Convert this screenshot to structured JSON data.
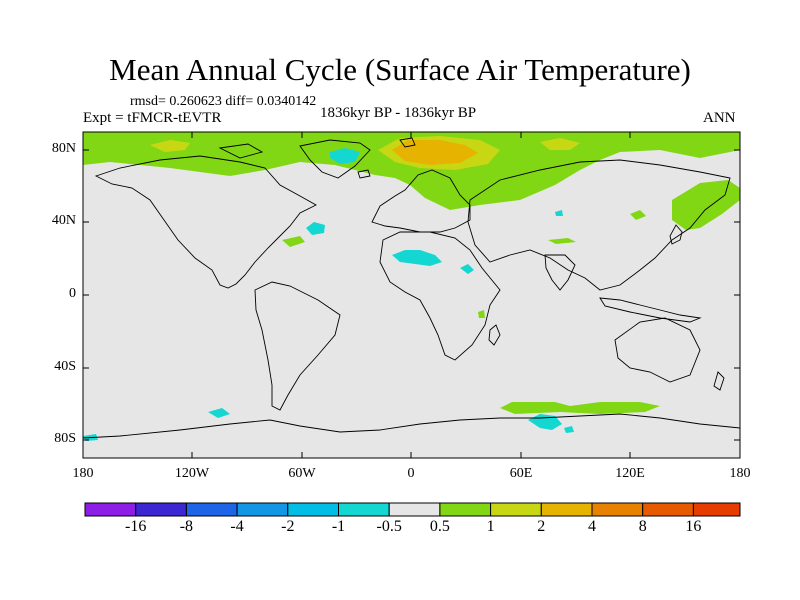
{
  "title": "Mean Annual Cycle (Surface Air Temperature)",
  "stats": "rmsd= 0.260623 diff= 0.0340142",
  "experiment": "Expt = tFMCR-tEVTR",
  "period": "1836kyr BP - 1836kyr BP",
  "season": "ANN",
  "y_axis": {
    "ticks": [
      "80N",
      "40N",
      "0",
      "40S",
      "80S"
    ]
  },
  "x_axis": {
    "ticks": [
      "180",
      "120W",
      "60W",
      "0",
      "60E",
      "120E",
      "180"
    ]
  },
  "colorbar": {
    "labels": [
      "-16",
      "-8",
      "-4",
      "-2",
      "-1",
      "-0.5",
      "0.5",
      "1",
      "2",
      "4",
      "8",
      "16"
    ],
    "colors": [
      "#8c1ee6",
      "#3c28d2",
      "#1e64e6",
      "#1496e6",
      "#00bee6",
      "#14d7d2",
      "#e6e6e6",
      "#82d714",
      "#c8d714",
      "#e6b400",
      "#e68200",
      "#e65a00",
      "#e63c00"
    ]
  },
  "map": {
    "background_color": "#e6e6e6",
    "coastline_color": "#000000"
  }
}
